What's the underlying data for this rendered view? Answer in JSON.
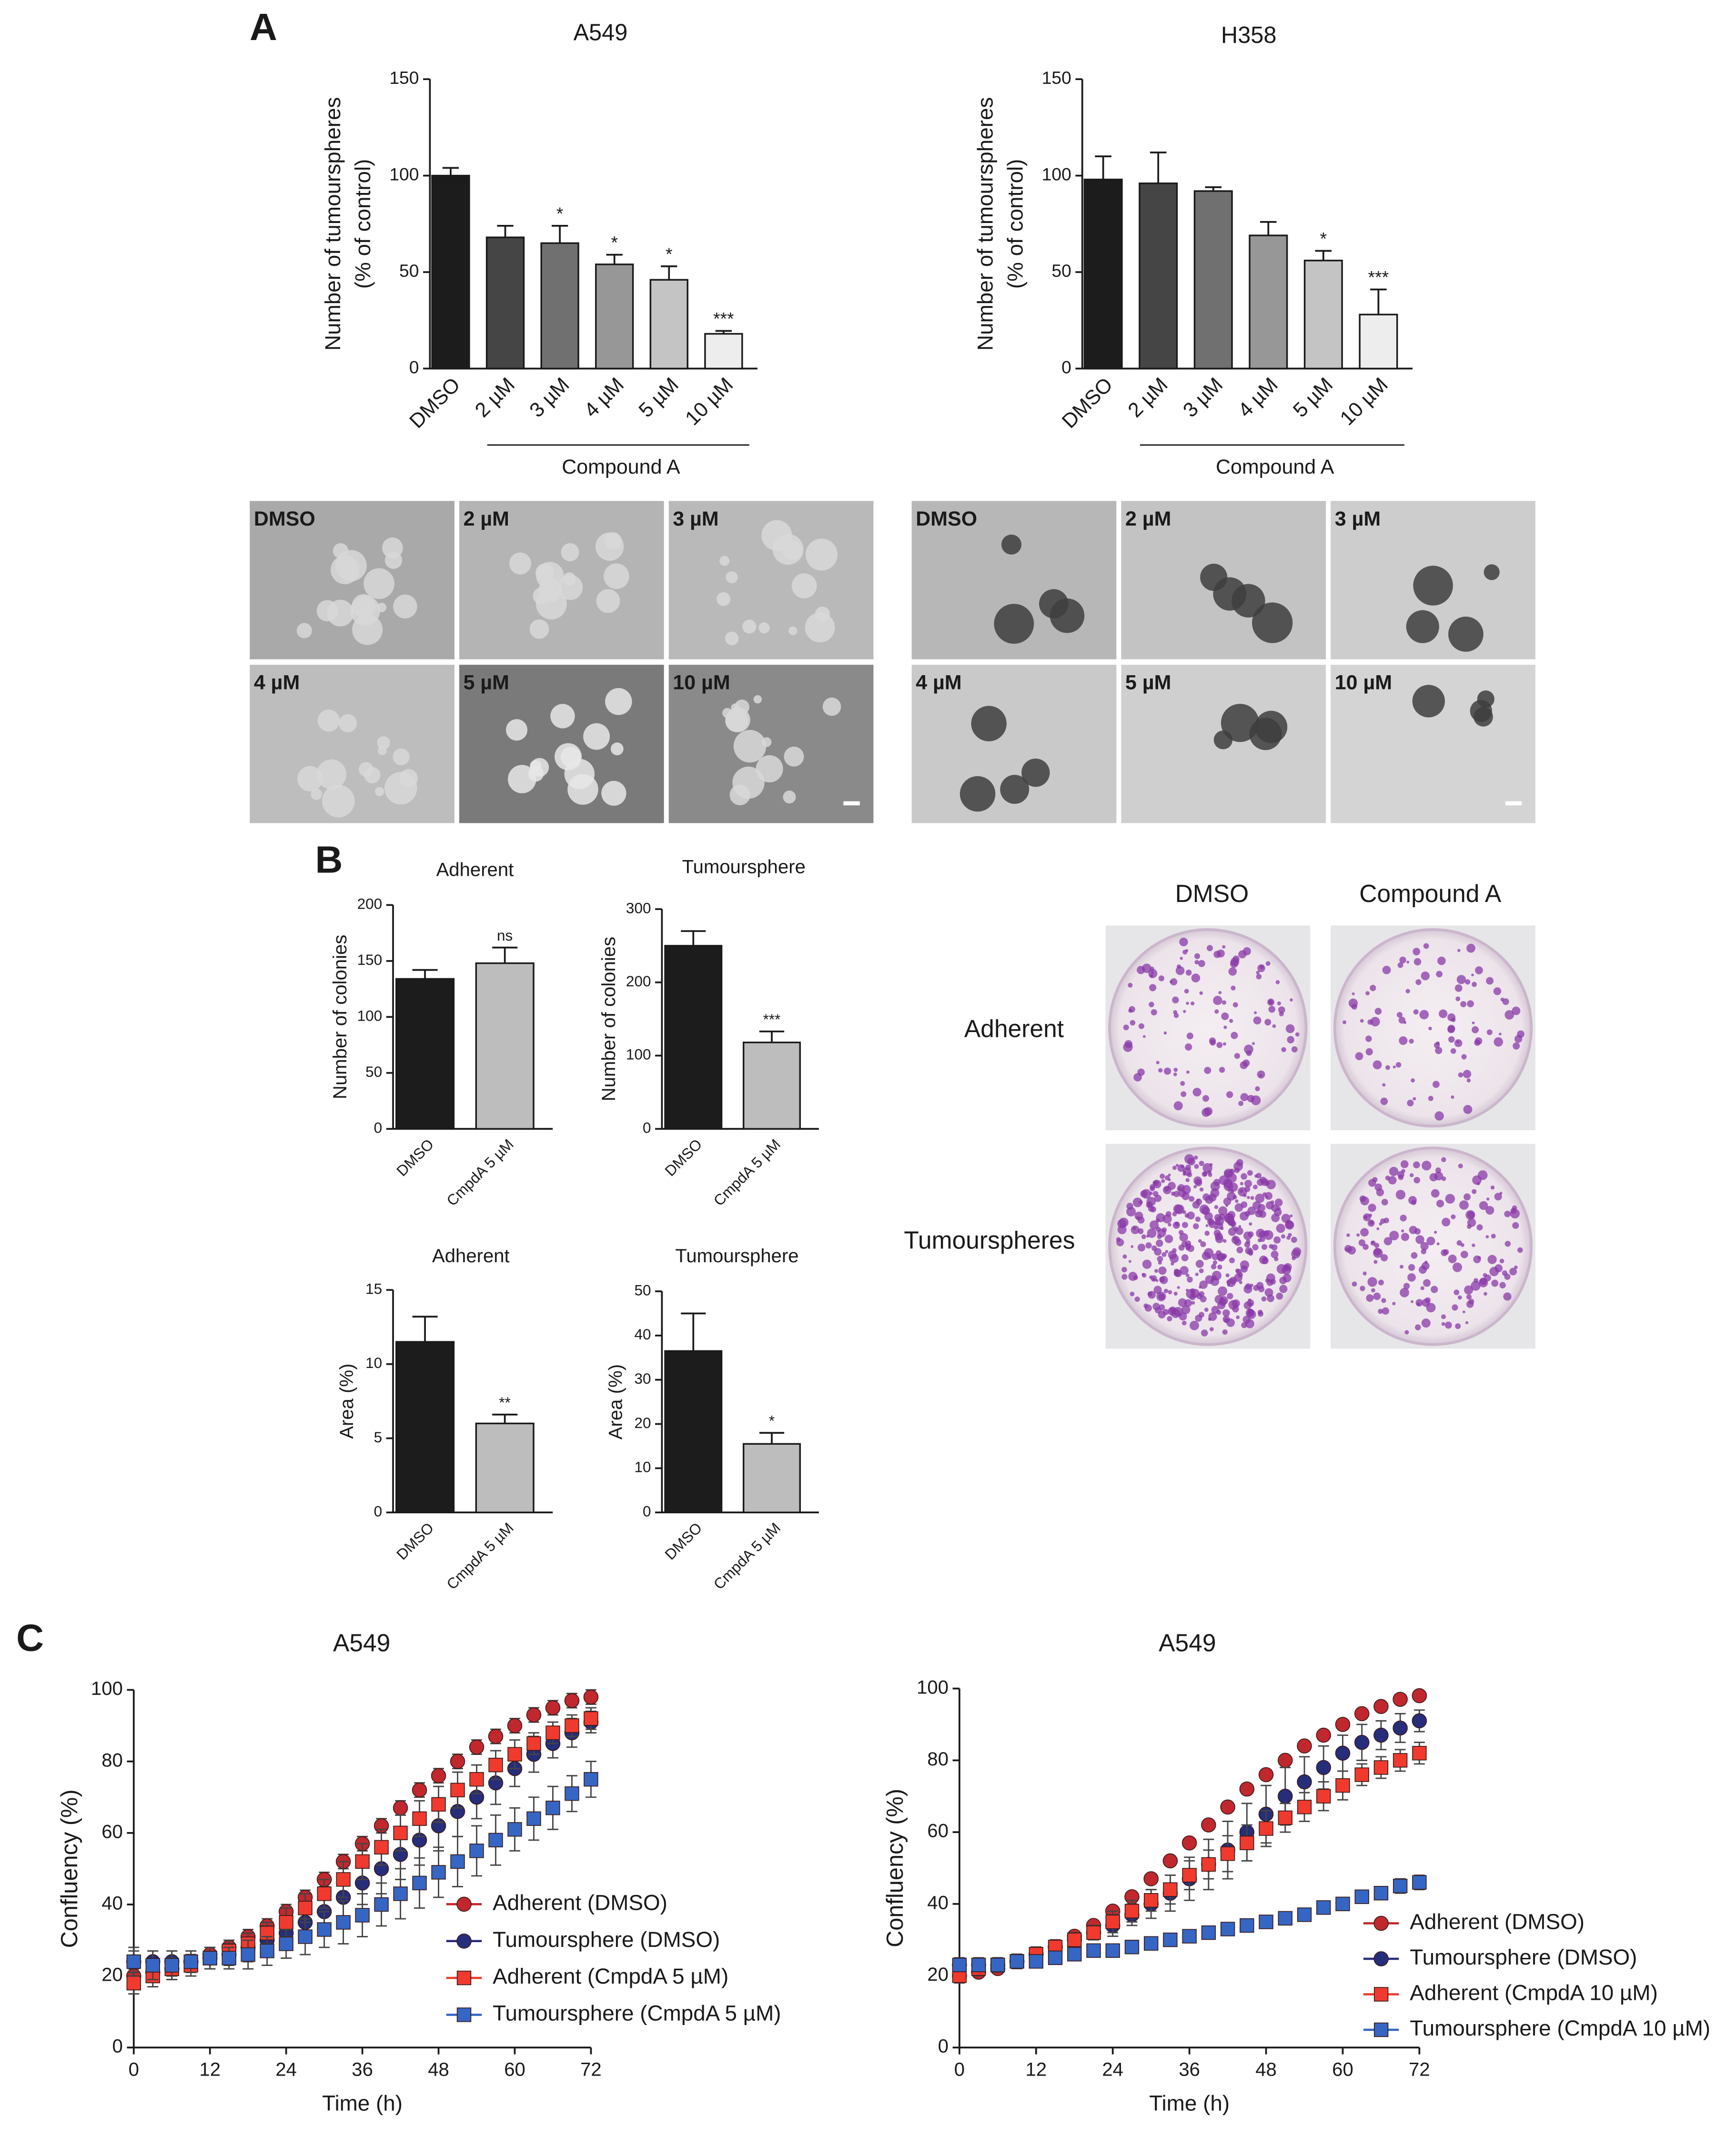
{
  "panel_labels": [
    "A",
    "B",
    "C"
  ],
  "micrographs": [
    [
      "DMSO",
      "2 µM",
      "3 µM",
      "4 µM",
      "5 µM",
      "10 µM"
    ],
    [
      "DMSO",
      "2 µM",
      "3 µM",
      "4 µM",
      "5 µM",
      "10 µM"
    ]
  ],
  "plates": {
    "columns": [
      "DMSO",
      "Compound A"
    ],
    "rows": [
      "Adherent",
      "Tumourspheres"
    ]
  },
  "chart_data": [
    {
      "type": "bar",
      "title": "A549",
      "ylabel": [
        "Number of tumourspheres",
        "(% of control)"
      ],
      "categories": [
        "DMSO",
        "2 µM",
        "3 µM",
        "4 µM",
        "5 µM",
        "10 µM"
      ],
      "group_label": "Compound A",
      "values": [
        100,
        68,
        65,
        54,
        46,
        18
      ],
      "errors": [
        4,
        6,
        9,
        5,
        7,
        1.5
      ],
      "significance": [
        null,
        null,
        "*",
        "*",
        "*",
        "***"
      ],
      "colors": [
        "#1c1c1c",
        "#454545",
        "#707070",
        "#979797",
        "#c4c4c4",
        "#ededed"
      ],
      "ylim": [
        0,
        150
      ],
      "yticks": [
        0,
        50,
        100,
        150
      ]
    },
    {
      "type": "bar",
      "title": "H358",
      "ylabel": [
        "Number of tumourspheres",
        "(% of control)"
      ],
      "categories": [
        "DMSO",
        "2 µM",
        "3 µM",
        "4 µM",
        "5 µM",
        "10 µM"
      ],
      "group_label": "Compound A",
      "values": [
        98,
        96,
        92,
        69,
        56,
        28
      ],
      "errors": [
        12,
        16,
        2,
        7,
        5,
        13
      ],
      "significance": [
        null,
        null,
        null,
        null,
        "*",
        "***"
      ],
      "colors": [
        "#1c1c1c",
        "#454545",
        "#707070",
        "#979797",
        "#c4c4c4",
        "#ededed"
      ],
      "ylim": [
        0,
        150
      ],
      "yticks": [
        0,
        50,
        100,
        150
      ]
    },
    {
      "type": "bar",
      "title": "Adherent",
      "ylabel": [
        "Number of colonies"
      ],
      "categories": [
        "DMSO",
        "CmpdA 5 µM"
      ],
      "values": [
        134,
        148
      ],
      "errors": [
        8,
        14
      ],
      "significance": [
        null,
        "ns"
      ],
      "colors": [
        "#1c1c1c",
        "#bdbdbd"
      ],
      "ylim": [
        0,
        200
      ],
      "yticks": [
        0,
        50,
        100,
        150,
        200
      ]
    },
    {
      "type": "bar",
      "title": "Tumoursphere",
      "ylabel": [
        "Number of colonies"
      ],
      "categories": [
        "DMSO",
        "CmpdA 5 µM"
      ],
      "values": [
        250,
        118
      ],
      "errors": [
        20,
        15
      ],
      "significance": [
        null,
        "***"
      ],
      "colors": [
        "#1c1c1c",
        "#bdbdbd"
      ],
      "ylim": [
        0,
        300
      ],
      "yticks": [
        0,
        100,
        200,
        300
      ]
    },
    {
      "type": "bar",
      "title": "Adherent",
      "ylabel": [
        "Area (%)"
      ],
      "categories": [
        "DMSO",
        "CmpdA 5 µM"
      ],
      "values": [
        11.5,
        6
      ],
      "errors": [
        1.7,
        0.6
      ],
      "significance": [
        null,
        "**"
      ],
      "colors": [
        "#1c1c1c",
        "#bdbdbd"
      ],
      "ylim": [
        0,
        15
      ],
      "yticks": [
        0,
        5,
        10,
        15
      ]
    },
    {
      "type": "bar",
      "title": "Tumoursphere",
      "ylabel": [
        "Area (%)"
      ],
      "categories": [
        "DMSO",
        "CmpdA 5 µM"
      ],
      "values": [
        36.5,
        15.5
      ],
      "errors": [
        8.5,
        2.5
      ],
      "significance": [
        null,
        "*"
      ],
      "colors": [
        "#1c1c1c",
        "#bdbdbd"
      ],
      "ylim": [
        0,
        50
      ],
      "yticks": [
        0,
        10,
        20,
        30,
        40,
        50
      ]
    },
    {
      "type": "line",
      "title": "A549",
      "xlabel": "Time (h)",
      "ylabel": [
        "Confluency (%)"
      ],
      "legend": "lower right",
      "x": [
        0,
        3,
        6,
        9,
        12,
        15,
        18,
        21,
        24,
        27,
        30,
        33,
        36,
        39,
        42,
        45,
        48,
        51,
        54,
        57,
        60,
        63,
        66,
        69,
        72
      ],
      "xlim": [
        0,
        72
      ],
      "xticks": [
        0,
        12,
        24,
        36,
        48,
        60,
        72
      ],
      "ylim": [
        0,
        100
      ],
      "yticks": [
        0,
        20,
        40,
        60,
        80,
        100
      ],
      "series": [
        {
          "name": "Adherent (DMSO)",
          "color": "#c0282d",
          "marker": "circle",
          "values": [
            20,
            21,
            22,
            24,
            26,
            28,
            31,
            34,
            38,
            42,
            47,
            52,
            57,
            62,
            67,
            72,
            76,
            80,
            84,
            87,
            90,
            93,
            95,
            97,
            98
          ],
          "errors": [
            2,
            2,
            2,
            2,
            2,
            2,
            2,
            2,
            2,
            2,
            2,
            2,
            2,
            2,
            2,
            2,
            2,
            2,
            2,
            2,
            2,
            2,
            2,
            2,
            2
          ]
        },
        {
          "name": "Tumoursphere (DMSO)",
          "color": "#262d7a",
          "marker": "circle",
          "values": [
            24,
            24,
            24,
            24,
            25,
            26,
            28,
            30,
            32,
            35,
            38,
            42,
            46,
            50,
            54,
            58,
            62,
            66,
            70,
            74,
            78,
            82,
            85,
            88,
            91
          ],
          "errors": [
            3,
            3,
            3,
            3,
            3,
            3,
            4,
            4,
            4,
            5,
            5,
            6,
            6,
            7,
            7,
            7,
            7,
            7,
            6,
            6,
            5,
            5,
            4,
            4,
            3
          ]
        },
        {
          "name": "Adherent (CmpdA 5 µM)",
          "color": "#f03a2e",
          "marker": "square",
          "values": [
            18,
            20,
            22,
            23,
            25,
            27,
            29,
            32,
            35,
            39,
            43,
            47,
            52,
            56,
            60,
            64,
            68,
            72,
            75,
            79,
            82,
            85,
            88,
            90,
            92
          ],
          "errors": [
            3,
            3,
            3,
            3,
            3,
            3,
            3,
            3,
            4,
            4,
            4,
            5,
            5,
            5,
            5,
            5,
            5,
            5,
            4,
            4,
            4,
            3,
            3,
            3,
            3
          ]
        },
        {
          "name": "Tumoursphere (CmpdA 5 µM)",
          "color": "#3566c4",
          "marker": "square",
          "values": [
            24,
            23,
            23,
            24,
            25,
            25,
            26,
            27,
            29,
            31,
            33,
            35,
            37,
            40,
            43,
            46,
            49,
            52,
            55,
            58,
            61,
            64,
            67,
            71,
            75
          ],
          "errors": [
            4,
            4,
            4,
            3,
            3,
            3,
            4,
            4,
            4,
            5,
            5,
            6,
            6,
            6,
            7,
            7,
            7,
            7,
            7,
            7,
            6,
            6,
            6,
            5,
            5
          ]
        }
      ]
    },
    {
      "type": "line",
      "title": "A549",
      "xlabel": "Time (h)",
      "ylabel": [
        "Confluency (%)"
      ],
      "legend": "lower right",
      "x": [
        0,
        3,
        6,
        9,
        12,
        15,
        18,
        21,
        24,
        27,
        30,
        33,
        36,
        39,
        42,
        45,
        48,
        51,
        54,
        57,
        60,
        63,
        66,
        69,
        72
      ],
      "xlim": [
        0,
        72
      ],
      "xticks": [
        0,
        12,
        24,
        36,
        48,
        60,
        72
      ],
      "ylim": [
        0,
        100
      ],
      "yticks": [
        0,
        20,
        40,
        60,
        80,
        100
      ],
      "series": [
        {
          "name": "Adherent (DMSO)",
          "color": "#c0282d",
          "marker": "circle",
          "values": [
            20,
            21,
            22,
            24,
            26,
            28,
            31,
            34,
            38,
            42,
            47,
            52,
            57,
            62,
            67,
            72,
            76,
            80,
            84,
            87,
            90,
            93,
            95,
            97,
            98
          ],
          "errors": [
            1,
            1,
            1,
            1,
            1,
            1,
            1,
            1,
            1,
            1,
            1,
            1,
            1,
            1,
            1,
            1,
            1,
            1,
            1,
            1,
            1,
            1,
            1,
            1,
            1
          ]
        },
        {
          "name": "Tumoursphere (DMSO)",
          "color": "#262d7a",
          "marker": "circle",
          "values": [
            23,
            23,
            23,
            24,
            26,
            28,
            30,
            32,
            34,
            37,
            40,
            43,
            47,
            51,
            55,
            60,
            65,
            70,
            74,
            78,
            82,
            85,
            87,
            89,
            91
          ],
          "errors": [
            2,
            2,
            2,
            2,
            2,
            2,
            2,
            2,
            3,
            3,
            4,
            5,
            6,
            7,
            8,
            8,
            8,
            8,
            7,
            6,
            5,
            5,
            4,
            4,
            3
          ]
        },
        {
          "name": "Adherent (CmpdA 10 µM)",
          "color": "#f03a2e",
          "marker": "square",
          "values": [
            20,
            22,
            23,
            24,
            26,
            28,
            30,
            32,
            35,
            38,
            41,
            44,
            48,
            51,
            54,
            57,
            61,
            64,
            67,
            70,
            73,
            76,
            78,
            80,
            82
          ],
          "errors": [
            2,
            2,
            2,
            2,
            2,
            2,
            2,
            2,
            3,
            3,
            3,
            4,
            4,
            4,
            5,
            5,
            5,
            4,
            4,
            4,
            4,
            3,
            3,
            3,
            3
          ]
        },
        {
          "name": "Tumoursphere (CmpdA 10 µM)",
          "color": "#3566c4",
          "marker": "square",
          "values": [
            23,
            23,
            23,
            24,
            24,
            25,
            26,
            27,
            27,
            28,
            29,
            30,
            31,
            32,
            33,
            34,
            35,
            36,
            37,
            39,
            40,
            42,
            43,
            45,
            46
          ],
          "errors": [
            1,
            1,
            1,
            1,
            1,
            1,
            1,
            1,
            1,
            1,
            1,
            1,
            1,
            1,
            1,
            1,
            1,
            1,
            1,
            1,
            1,
            1,
            1,
            2,
            2
          ]
        }
      ]
    }
  ]
}
